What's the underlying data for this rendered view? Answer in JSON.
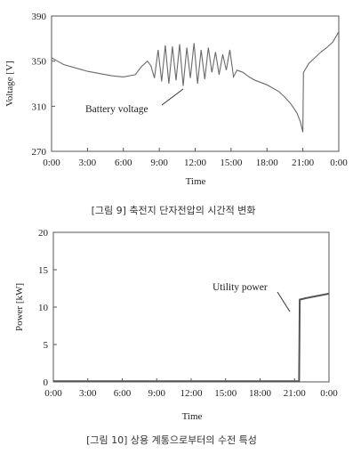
{
  "chart_data": [
    {
      "type": "line",
      "title": "",
      "caption": "[그림 9] 축전지 단자전압의 시간적 변화",
      "xlabel": "Time",
      "ylabel": "Voltage [V]",
      "ylim": [
        270,
        390
      ],
      "yticks": [
        "270",
        "310",
        "350",
        "390"
      ],
      "xticks": [
        "0:00",
        "3:00",
        "6:00",
        "9:00",
        "12:00",
        "15:00",
        "18:00",
        "21:00",
        "0:00"
      ],
      "grid": false,
      "annotation": "Battery voltage",
      "series": [
        {
          "x": [
            0,
            0.5,
            1,
            2,
            3,
            4,
            5,
            6,
            7,
            7.5,
            8,
            8.3,
            8.6,
            8.9,
            9.2,
            9.5,
            9.8,
            10.1,
            10.4,
            10.7,
            11,
            11.3,
            11.6,
            11.9,
            12.2,
            12.5,
            12.8,
            13.1,
            13.4,
            13.7,
            14,
            14.3,
            14.6,
            14.9,
            15.2,
            15.5,
            16,
            16.5,
            17,
            17.5,
            18,
            18.5,
            19,
            19.5,
            20,
            20.5,
            20.8,
            21,
            21.05,
            21.5,
            22,
            22.5,
            23,
            23.5,
            24
          ],
          "y": [
            353,
            350,
            347,
            344,
            341,
            339,
            337,
            336,
            338,
            345,
            350,
            346,
            335,
            360,
            332,
            364,
            330,
            363,
            333,
            365,
            328,
            362,
            335,
            366,
            330,
            360,
            334,
            362,
            340,
            358,
            338,
            356,
            342,
            360,
            336,
            342,
            340,
            336,
            333,
            331,
            329,
            326,
            323,
            318,
            312,
            304,
            296,
            287,
            340,
            348,
            353,
            358,
            362,
            367,
            376
          ]
        }
      ]
    },
    {
      "type": "line",
      "title": "",
      "caption": "[그림 10] 상용 계통으로부터의 수전 특성",
      "xlabel": "Time",
      "ylabel": "Power [kW]",
      "ylim": [
        0,
        20
      ],
      "yticks": [
        "0",
        "5",
        "10",
        "15",
        "20"
      ],
      "xticks": [
        "0:00",
        "3:00",
        "6:00",
        "9:00",
        "12:00",
        "15:00",
        "18:00",
        "21:00",
        "0:00"
      ],
      "grid": false,
      "annotation": "Utility power",
      "series": [
        {
          "x": [
            0,
            3,
            6,
            9,
            12,
            15,
            18,
            21,
            21.4,
            21.45,
            22,
            23,
            24
          ],
          "y": [
            0.1,
            0.1,
            0.1,
            0.1,
            0.1,
            0.1,
            0.1,
            0.1,
            0.1,
            11.0,
            11.2,
            11.5,
            11.8
          ]
        }
      ]
    }
  ]
}
